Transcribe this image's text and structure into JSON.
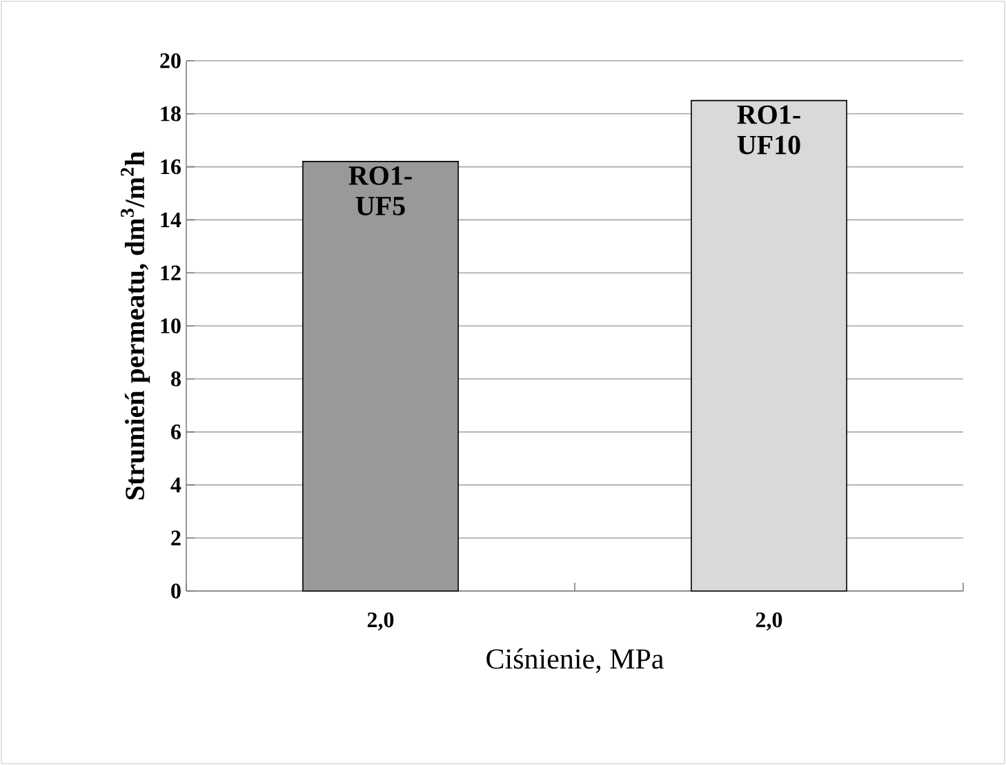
{
  "chart_data": {
    "type": "bar",
    "xlabel": "Ciśnienie, MPa",
    "ylabel": "Strumień permeatu, dm$^{3}$/m$^{2}$h",
    "categories": [
      "2,0",
      "2,0"
    ],
    "series": [
      {
        "name": "RO1-UF5",
        "color": "#999999",
        "values": [
          16.2,
          null
        ]
      },
      {
        "name": "RO1-UF10",
        "color": "#d9d9d9",
        "values": [
          null,
          18.5
        ]
      }
    ],
    "ylim": [
      0,
      20
    ],
    "yticks": [
      0,
      2,
      4,
      6,
      8,
      10,
      12,
      14,
      16,
      18,
      20
    ],
    "grid": "y"
  }
}
